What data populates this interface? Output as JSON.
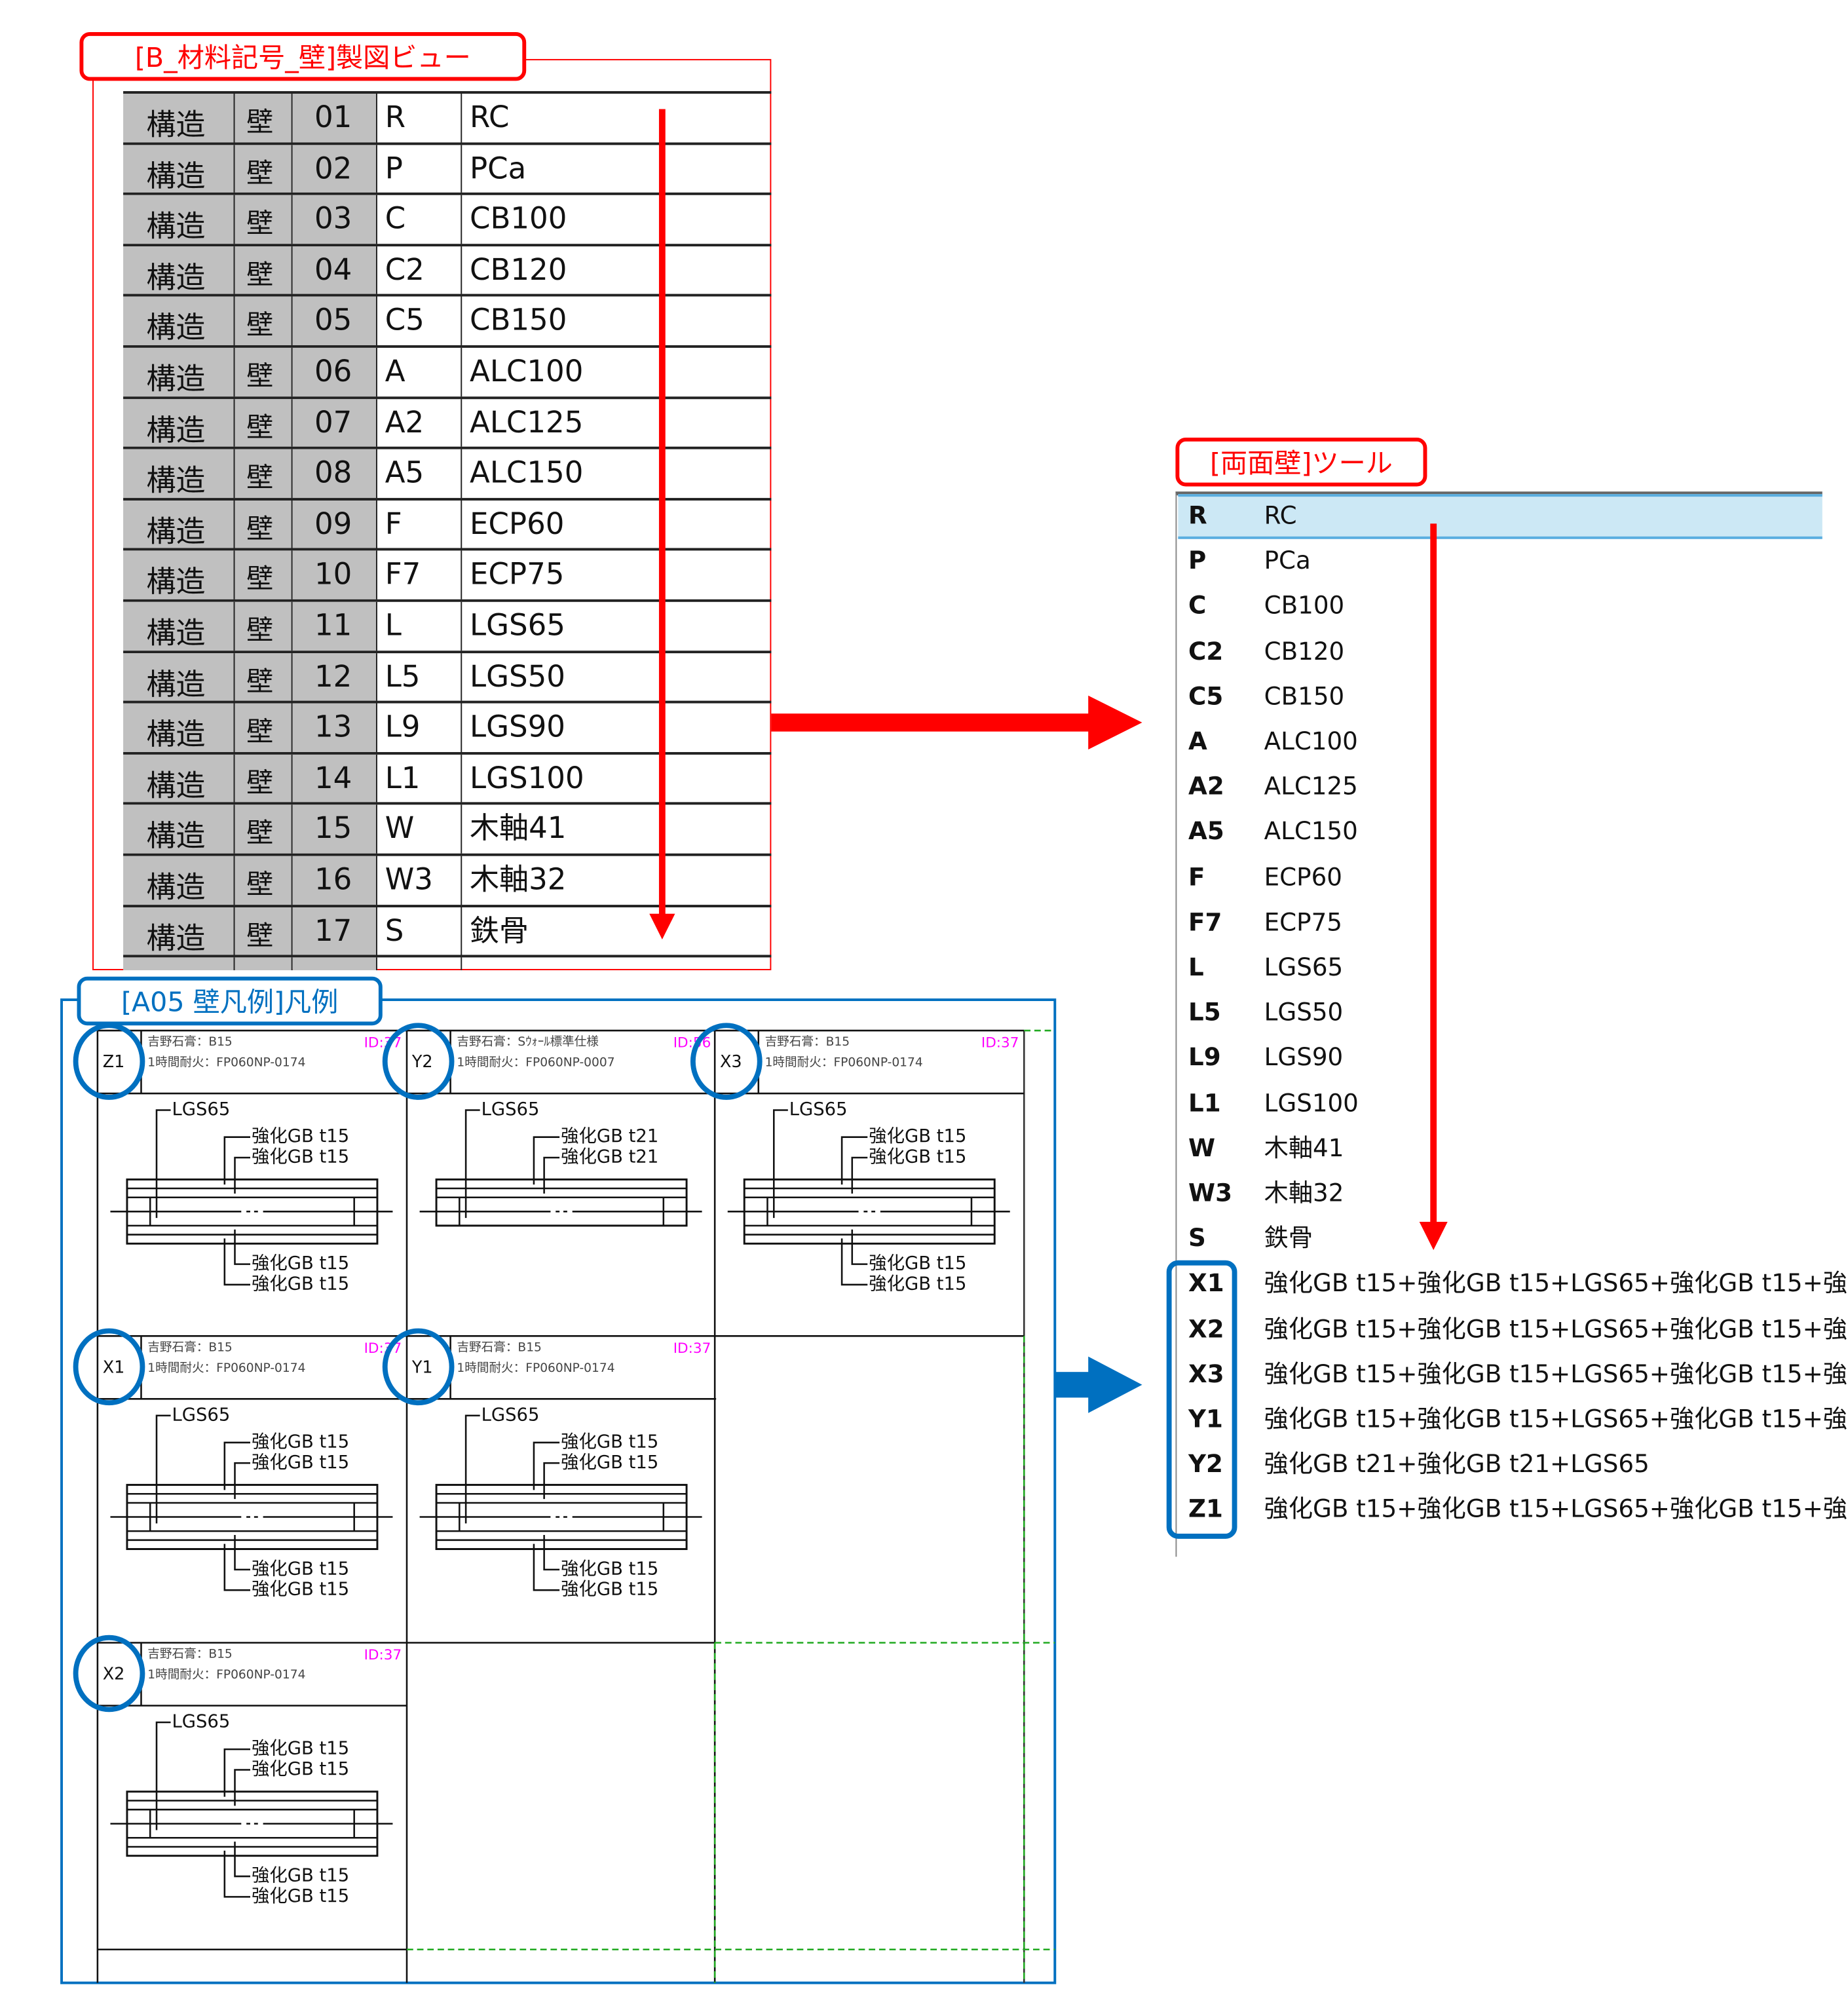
{
  "material_view": {
    "title": "[B_材料記号_壁]製図ビュー",
    "rows": [
      [
        "構造",
        "壁",
        "01",
        "R",
        "RC"
      ],
      [
        "構造",
        "壁",
        "02",
        "P",
        "PCa"
      ],
      [
        "構造",
        "壁",
        "03",
        "C",
        "CB100"
      ],
      [
        "構造",
        "壁",
        "04",
        "C2",
        "CB120"
      ],
      [
        "構造",
        "壁",
        "05",
        "C5",
        "CB150"
      ],
      [
        "構造",
        "壁",
        "06",
        "A",
        "ALC100"
      ],
      [
        "構造",
        "壁",
        "07",
        "A2",
        "ALC125"
      ],
      [
        "構造",
        "壁",
        "08",
        "A5",
        "ALC150"
      ],
      [
        "構造",
        "壁",
        "09",
        "F",
        "ECP60"
      ],
      [
        "構造",
        "壁",
        "10",
        "F7",
        "ECP75"
      ],
      [
        "構造",
        "壁",
        "11",
        "L",
        "LGS65"
      ],
      [
        "構造",
        "壁",
        "12",
        "L5",
        "LGS50"
      ],
      [
        "構造",
        "壁",
        "13",
        "L9",
        "LGS90"
      ],
      [
        "構造",
        "壁",
        "14",
        "L1",
        "LGS100"
      ],
      [
        "構造",
        "壁",
        "15",
        "W",
        "木軸41"
      ],
      [
        "構造",
        "壁",
        "16",
        "W3",
        "木軸32"
      ],
      [
        "構造",
        "壁",
        "17",
        "S",
        "鉄骨"
      ]
    ]
  },
  "tool": {
    "title": "[両面壁]ツール",
    "selected_index": 0,
    "items": [
      {
        "code": "R",
        "name": "RC"
      },
      {
        "code": "P",
        "name": "PCa"
      },
      {
        "code": "C",
        "name": "CB100"
      },
      {
        "code": "C2",
        "name": "CB120"
      },
      {
        "code": "C5",
        "name": "CB150"
      },
      {
        "code": "A",
        "name": "ALC100"
      },
      {
        "code": "A2",
        "name": "ALC125"
      },
      {
        "code": "A5",
        "name": "ALC150"
      },
      {
        "code": "F",
        "name": "ECP60"
      },
      {
        "code": "F7",
        "name": "ECP75"
      },
      {
        "code": "L",
        "name": "LGS65"
      },
      {
        "code": "L5",
        "name": "LGS50"
      },
      {
        "code": "L9",
        "name": "LGS90"
      },
      {
        "code": "L1",
        "name": "LGS100"
      },
      {
        "code": "W",
        "name": "木軸41"
      },
      {
        "code": "W3",
        "name": "木軸32"
      },
      {
        "code": "S",
        "name": "鉄骨"
      },
      {
        "code": "X1",
        "name": "強化GB t15+強化GB t15+LGS65+強化GB t15+強"
      },
      {
        "code": "X2",
        "name": "強化GB t15+強化GB t15+LGS65+強化GB t15+強"
      },
      {
        "code": "X3",
        "name": "強化GB t15+強化GB t15+LGS65+強化GB t15+強"
      },
      {
        "code": "Y1",
        "name": "強化GB t15+強化GB t15+LGS65+強化GB t15+強"
      },
      {
        "code": "Y2",
        "name": "強化GB t21+強化GB t21+LGS65"
      },
      {
        "code": "Z1",
        "name": "強化GB t15+強化GB t15+LGS65+強化GB t15+強"
      }
    ]
  },
  "legend": {
    "title": "[A05 壁凡例]凡例",
    "cells": [
      {
        "code": "Z1",
        "maker": "吉野石膏：B15",
        "fire": "1時間耐火：FP060NP-0174",
        "id": "ID:37",
        "core": "LGS65",
        "top": [
          "強化GB t15",
          "強化GB t15"
        ],
        "bottom": [
          "強化GB t15",
          "強化GB t15"
        ]
      },
      {
        "code": "Y2",
        "maker": "吉野石膏：Sｳｫｰﾙ標準仕様",
        "fire": "1時間耐火：FP060NP-0007",
        "id": "ID:56",
        "core": "LGS65",
        "top": [
          "強化GB t21",
          "強化GB t21"
        ],
        "bottom": []
      },
      {
        "code": "X3",
        "maker": "吉野石膏：B15",
        "fire": "1時間耐火：FP060NP-0174",
        "id": "ID:37",
        "core": "LGS65",
        "top": [
          "強化GB t15",
          "強化GB t15"
        ],
        "bottom": [
          "強化GB t15",
          "強化GB t15"
        ]
      },
      {
        "code": "X1",
        "maker": "吉野石膏：B15",
        "fire": "1時間耐火：FP060NP-0174",
        "id": "ID:37",
        "core": "LGS65",
        "top": [
          "強化GB t15",
          "強化GB t15"
        ],
        "bottom": [
          "強化GB t15",
          "強化GB t15"
        ]
      },
      {
        "code": "Y1",
        "maker": "吉野石膏：B15",
        "fire": "1時間耐火：FP060NP-0174",
        "id": "ID:37",
        "core": "LGS65",
        "top": [
          "強化GB t15",
          "強化GB t15"
        ],
        "bottom": [
          "強化GB t15",
          "強化GB t15"
        ]
      },
      {
        "code": "X2",
        "maker": "吉野石膏：B15",
        "fire": "1時間耐火：FP060NP-0174",
        "id": "ID:37",
        "core": "LGS65",
        "top": [
          "強化GB t15",
          "強化GB t15"
        ],
        "bottom": [
          "強化GB t15",
          "強化GB t15"
        ]
      }
    ]
  },
  "colors": {
    "annotation_red": "#ff0000",
    "annotation_blue": "#0070c0",
    "id_magenta": "#ff00ff",
    "selected_row": "#cce8f5",
    "table_gray": "#c0c0c0"
  }
}
